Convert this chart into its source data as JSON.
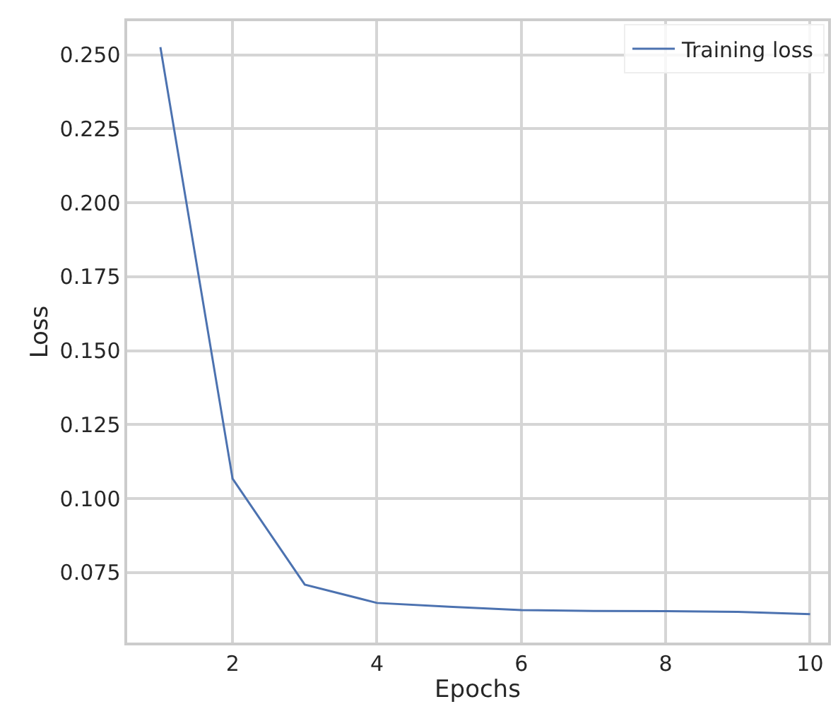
{
  "chart_data": {
    "type": "line",
    "xlabel": "Epochs",
    "ylabel": "Loss",
    "x": [
      1,
      2,
      3,
      4,
      5,
      6,
      7,
      8,
      9,
      10
    ],
    "series": [
      {
        "name": "Training loss",
        "color": "#4c72b0",
        "values": [
          0.2526,
          0.1067,
          0.0709,
          0.0647,
          0.0634,
          0.0623,
          0.062,
          0.0619,
          0.0617,
          0.0609
        ]
      }
    ],
    "xlim": [
      0.54,
      10.25
    ],
    "xticks": [
      2,
      4,
      6,
      8,
      10
    ],
    "ylim": [
      0.0513,
      0.2614
    ],
    "yticks": [
      0.075,
      {
        "value": 0.1,
        "label": "0.100"
      },
      0.125,
      {
        "value": 0.15,
        "label": "0.150"
      },
      0.175,
      {
        "value": 0.2,
        "label": "0.200"
      },
      0.225,
      {
        "value": 0.25,
        "label": "0.250"
      }
    ],
    "grid": true,
    "legend": "top right",
    "marker": "none",
    "line_style": "solid"
  }
}
